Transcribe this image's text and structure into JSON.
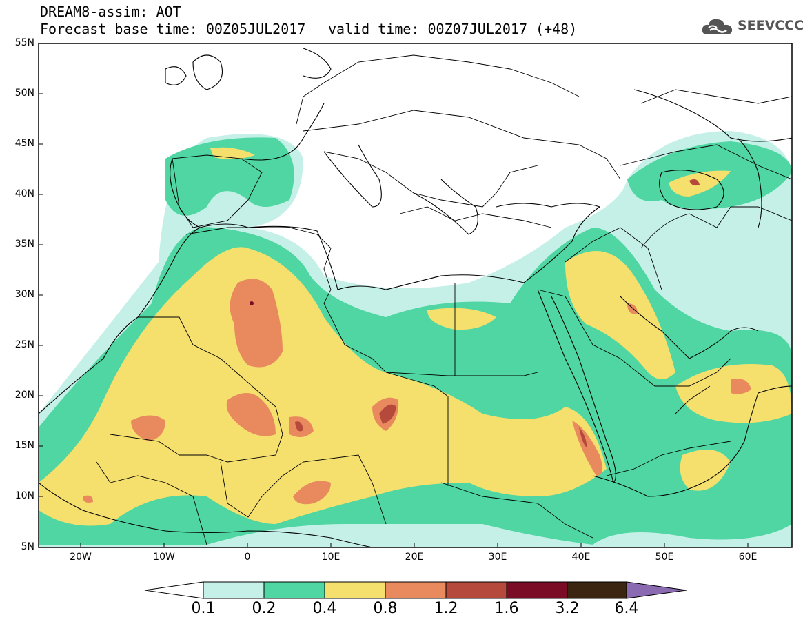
{
  "header": {
    "model_line": "DREAM8-assim: AOT",
    "forecast_line": "Forecast base time: 00Z05JUL2017",
    "valid_line": "valid time: 00Z07JUL2017 (+48)",
    "logo_text": "SEEVCCC",
    "logo_icon": "cloud-icon"
  },
  "map": {
    "variable": "AOT",
    "lon_range": [
      -25,
      65
    ],
    "lat_range": [
      5,
      55
    ],
    "lat_labels": [
      "55N",
      "50N",
      "45N",
      "40N",
      "35N",
      "30N",
      "25N",
      "20N",
      "15N",
      "10N",
      "5N"
    ],
    "lon_labels": [
      "20W",
      "10W",
      "0",
      "10E",
      "20E",
      "30E",
      "40E",
      "50E",
      "60E"
    ]
  },
  "colorbar": {
    "levels": [
      "0.1",
      "0.2",
      "0.4",
      "0.8",
      "1.2",
      "1.6",
      "3.2",
      "6.4"
    ],
    "colors": [
      "#c5f0e8",
      "#4fd6a2",
      "#f5e06e",
      "#e88a5e",
      "#b54a3c",
      "#7a0c26",
      "#3b2410",
      "#8a6ab0"
    ],
    "under_color": "#ffffff"
  }
}
